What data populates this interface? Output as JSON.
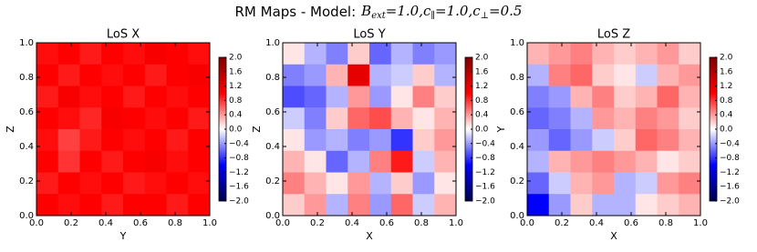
{
  "chart_data": {
    "type": "heatmap",
    "title": "RM Maps - Model:",
    "parameters": [
      {
        "symbol": "B",
        "subscript": "ext",
        "text": "=1.0"
      },
      {
        "symbol": "c",
        "subscript": "∥",
        "text": "=1.0"
      },
      {
        "symbol": "c",
        "subscript": "⊥",
        "text": "=0.5"
      }
    ],
    "separator": ",",
    "xlim": [
      0,
      1
    ],
    "ylim": [
      0,
      1
    ],
    "xticks": [
      {
        "value": 0,
        "label": "0.0"
      },
      {
        "value": 0.2,
        "label": "0.2"
      },
      {
        "value": 0.4,
        "label": "0.4"
      },
      {
        "value": 0.6,
        "label": "0.6"
      },
      {
        "value": 0.8,
        "label": "0.8"
      },
      {
        "value": 1,
        "label": "1.0"
      }
    ],
    "yticks": [
      {
        "value": 0,
        "label": "0.0"
      },
      {
        "value": 0.2,
        "label": "0.2"
      },
      {
        "value": 0.4,
        "label": "0.4"
      },
      {
        "value": 0.6,
        "label": "0.6"
      },
      {
        "value": 0.8,
        "label": "0.8"
      },
      {
        "value": 1,
        "label": "1.0"
      }
    ],
    "clim": [
      -2,
      2
    ],
    "cticks": [
      {
        "value": 2,
        "label": "2.0"
      },
      {
        "value": 1.6,
        "label": "1.6"
      },
      {
        "value": 1.2,
        "label": "1.2"
      },
      {
        "value": 0.8,
        "label": "0.8"
      },
      {
        "value": 0.4,
        "label": "0.4"
      },
      {
        "value": 0,
        "label": "0.0"
      },
      {
        "value": -0.4,
        "label": "−0.4"
      },
      {
        "value": -0.8,
        "label": "−0.8"
      },
      {
        "value": -1.2,
        "label": "−1.2"
      },
      {
        "value": -1.6,
        "label": "−1.6"
      },
      {
        "value": -2,
        "label": "−2.0"
      }
    ],
    "colormap": [
      "#00004c",
      "#0000ff",
      "#ffffff",
      "#ff0000",
      "#800000"
    ],
    "panels": [
      {
        "title": "LoS X",
        "xlabel": "Y",
        "ylabel": "Z",
        "values": [
          [
            0.95,
            1.0,
            0.9,
            1.0,
            0.95,
            1.05,
            1.0,
            0.95
          ],
          [
            1.0,
            0.9,
            1.0,
            0.95,
            1.0,
            0.9,
            1.0,
            1.05
          ],
          [
            0.9,
            1.05,
            0.95,
            1.0,
            0.9,
            1.0,
            0.95,
            1.0
          ],
          [
            1.0,
            0.95,
            0.85,
            1.05,
            1.0,
            0.95,
            1.0,
            0.9
          ],
          [
            0.95,
            0.75,
            0.9,
            1.0,
            0.95,
            1.0,
            0.9,
            1.0
          ],
          [
            1.0,
            0.8,
            1.0,
            0.9,
            1.0,
            1.05,
            0.95,
            1.0
          ],
          [
            0.9,
            1.0,
            0.95,
            1.0,
            0.9,
            0.95,
            1.0,
            0.95
          ],
          [
            1.0,
            0.95,
            1.0,
            0.9,
            1.0,
            1.0,
            0.9,
            1.0
          ]
        ]
      },
      {
        "title": "LoS Y",
        "xlabel": "X",
        "ylabel": "Z",
        "values": [
          [
            0.1,
            -0.3,
            -0.5,
            0.2,
            -0.6,
            -0.3,
            -0.5,
            -0.4
          ],
          [
            -0.5,
            -0.4,
            0.3,
            1.2,
            -0.3,
            -0.2,
            0.2,
            -0.3
          ],
          [
            -0.7,
            -0.6,
            -0.3,
            0.4,
            -0.4,
            0.1,
            0.5,
            0.2
          ],
          [
            -0.2,
            -0.5,
            0.2,
            0.6,
            0.7,
            0.3,
            0.1,
            0.3
          ],
          [
            0.1,
            -0.4,
            -0.3,
            -0.5,
            -0.4,
            -0.8,
            0.2,
            0.4
          ],
          [
            0.3,
            0.1,
            -0.6,
            -0.3,
            0.5,
            0.9,
            -0.2,
            0.3
          ],
          [
            0.5,
            0.3,
            0.1,
            0.4,
            -0.3,
            0.2,
            -0.4,
            0.1
          ],
          [
            0.2,
            0.4,
            -0.3,
            0.5,
            -0.4,
            0.6,
            -0.2,
            0.3
          ]
        ]
      },
      {
        "title": "LoS Z",
        "xlabel": "X",
        "ylabel": "Y",
        "values": [
          [
            0.3,
            0.4,
            0.5,
            0.3,
            0.2,
            0.3,
            0.4,
            0.2
          ],
          [
            -0.3,
            0.5,
            0.6,
            0.2,
            0.1,
            -0.2,
            0.3,
            0.4
          ],
          [
            -0.5,
            -0.4,
            0.3,
            0.5,
            0.2,
            0.3,
            0.6,
            0.3
          ],
          [
            -0.6,
            -0.5,
            -0.3,
            0.4,
            0.3,
            0.5,
            0.4,
            0.2
          ],
          [
            -0.4,
            -0.6,
            -0.4,
            -0.2,
            0.2,
            0.6,
            0.5,
            0.3
          ],
          [
            -0.3,
            0.3,
            0.4,
            0.5,
            0.4,
            0.3,
            0.1,
            0.2
          ],
          [
            -0.6,
            -0.2,
            0.3,
            0.4,
            -0.3,
            -0.2,
            0.4,
            0.5
          ],
          [
            -1.0,
            -0.4,
            0.2,
            -0.3,
            -0.3,
            0.1,
            0.2,
            0.3
          ]
        ]
      }
    ]
  }
}
